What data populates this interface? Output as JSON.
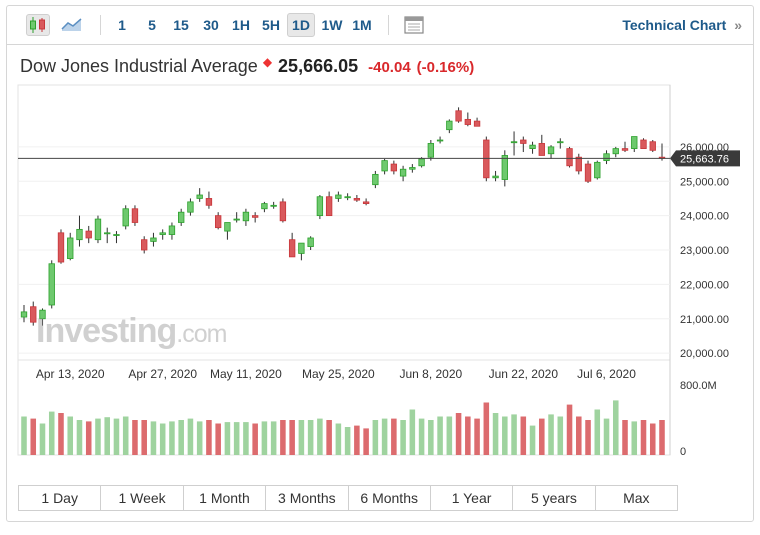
{
  "toolbar": {
    "chart_type_icons": [
      "candlestick-icon",
      "area-chart-icon"
    ],
    "intervals": [
      "1",
      "5",
      "15",
      "30",
      "1H",
      "5H",
      "1D",
      "1W",
      "1M"
    ],
    "active_interval": "1D",
    "calendar_icon": "calendar-icon",
    "technical_link": "Technical Chart",
    "technical_arrow": "»"
  },
  "header": {
    "name": "Dow Jones Industrial Average",
    "star": "◆",
    "price": "25,666.05",
    "change": "-40.04",
    "change_pct": "(-0.16%)"
  },
  "watermark": {
    "main": "Investing",
    "domain": ".com"
  },
  "ranges": [
    "1 Day",
    "1 Week",
    "1 Month",
    "3 Months",
    "6 Months",
    "1 Year",
    "5 years",
    "Max"
  ],
  "colors": {
    "up": "#2ca02c",
    "up_fill": "#6ec96e",
    "down": "#c8363a",
    "down_fill": "#d9595c",
    "vol_up": "#9fd39f",
    "vol_down": "#dc6b6e",
    "link": "#1e5a8a"
  },
  "chart_data": {
    "type": "candlestick",
    "x_tick_labels": [
      "Apr 13, 2020",
      "Apr 27, 2020",
      "May 11, 2020",
      "May 25, 2020",
      "Jun 8, 2020",
      "Jun 22, 2020",
      "Jul 6, 2020"
    ],
    "y_tick_labels": [
      "20,000.00",
      "21,000.00",
      "22,000.00",
      "23,000.00",
      "24,000.00",
      "25,000.00",
      "26,000.00"
    ],
    "ylim": [
      19800,
      27800
    ],
    "current_price_label": "25,663.76",
    "current_price": 25663.76,
    "volume_label_top": "800.0M",
    "volume_label_bottom": "0",
    "candles": [
      {
        "o": 21050,
        "h": 21400,
        "l": 20900,
        "c": 21200
      },
      {
        "o": 21350,
        "h": 21500,
        "l": 20800,
        "c": 20900
      },
      {
        "o": 21000,
        "h": 21300,
        "l": 20800,
        "c": 21250
      },
      {
        "o": 21400,
        "h": 22700,
        "l": 21300,
        "c": 22600
      },
      {
        "o": 23500,
        "h": 23600,
        "l": 22600,
        "c": 22650
      },
      {
        "o": 22750,
        "h": 23500,
        "l": 22700,
        "c": 23350
      },
      {
        "o": 23300,
        "h": 24000,
        "l": 23100,
        "c": 23600
      },
      {
        "o": 23550,
        "h": 23700,
        "l": 23200,
        "c": 23350
      },
      {
        "o": 23300,
        "h": 24000,
        "l": 23200,
        "c": 23900
      },
      {
        "o": 23500,
        "h": 23650,
        "l": 23200,
        "c": 23500
      },
      {
        "o": 23450,
        "h": 23550,
        "l": 23200,
        "c": 23450
      },
      {
        "o": 23700,
        "h": 24300,
        "l": 23600,
        "c": 24200
      },
      {
        "o": 24200,
        "h": 24300,
        "l": 23700,
        "c": 23800
      },
      {
        "o": 23300,
        "h": 23400,
        "l": 22900,
        "c": 23000
      },
      {
        "o": 23250,
        "h": 23500,
        "l": 23100,
        "c": 23350
      },
      {
        "o": 23450,
        "h": 23600,
        "l": 23300,
        "c": 23500
      },
      {
        "o": 23450,
        "h": 23800,
        "l": 23300,
        "c": 23700
      },
      {
        "o": 23800,
        "h": 24200,
        "l": 23700,
        "c": 24100
      },
      {
        "o": 24100,
        "h": 24500,
        "l": 24000,
        "c": 24400
      },
      {
        "o": 24500,
        "h": 24800,
        "l": 24400,
        "c": 24600
      },
      {
        "o": 24500,
        "h": 24700,
        "l": 24200,
        "c": 24300
      },
      {
        "o": 24000,
        "h": 24100,
        "l": 23600,
        "c": 23650
      },
      {
        "o": 23550,
        "h": 23800,
        "l": 23300,
        "c": 23800
      },
      {
        "o": 23900,
        "h": 24100,
        "l": 23800,
        "c": 23900
      },
      {
        "o": 23850,
        "h": 24200,
        "l": 23700,
        "c": 24100
      },
      {
        "o": 24000,
        "h": 24100,
        "l": 23800,
        "c": 23950
      },
      {
        "o": 24200,
        "h": 24400,
        "l": 24100,
        "c": 24350
      },
      {
        "o": 24300,
        "h": 24400,
        "l": 24200,
        "c": 24300
      },
      {
        "o": 24400,
        "h": 24500,
        "l": 23800,
        "c": 23850
      },
      {
        "o": 23300,
        "h": 23500,
        "l": 22800,
        "c": 22800
      },
      {
        "o": 22900,
        "h": 23200,
        "l": 22700,
        "c": 23200
      },
      {
        "o": 23100,
        "h": 23400,
        "l": 23000,
        "c": 23350
      },
      {
        "o": 24000,
        "h": 24600,
        "l": 23900,
        "c": 24550
      },
      {
        "o": 24550,
        "h": 24700,
        "l": 24000,
        "c": 24000
      },
      {
        "o": 24500,
        "h": 24700,
        "l": 24400,
        "c": 24600
      },
      {
        "o": 24550,
        "h": 24650,
        "l": 24450,
        "c": 24550
      },
      {
        "o": 24500,
        "h": 24600,
        "l": 24400,
        "c": 24450
      },
      {
        "o": 24400,
        "h": 24500,
        "l": 24300,
        "c": 24350
      },
      {
        "o": 24900,
        "h": 25300,
        "l": 24800,
        "c": 25200
      },
      {
        "o": 25300,
        "h": 25650,
        "l": 25200,
        "c": 25600
      },
      {
        "o": 25500,
        "h": 25600,
        "l": 25200,
        "c": 25300
      },
      {
        "o": 25150,
        "h": 25450,
        "l": 25000,
        "c": 25350
      },
      {
        "o": 25350,
        "h": 25500,
        "l": 25250,
        "c": 25400
      },
      {
        "o": 25450,
        "h": 25700,
        "l": 25400,
        "c": 25650
      },
      {
        "o": 25700,
        "h": 26200,
        "l": 25600,
        "c": 26100
      },
      {
        "o": 26200,
        "h": 26300,
        "l": 26100,
        "c": 26200
      },
      {
        "o": 26500,
        "h": 26800,
        "l": 26400,
        "c": 26750
      },
      {
        "o": 27050,
        "h": 27150,
        "l": 26700,
        "c": 26750
      },
      {
        "o": 26800,
        "h": 27000,
        "l": 26600,
        "c": 26650
      },
      {
        "o": 26750,
        "h": 26850,
        "l": 26600,
        "c": 26600
      },
      {
        "o": 26200,
        "h": 26300,
        "l": 25000,
        "c": 25100
      },
      {
        "o": 25100,
        "h": 25300,
        "l": 25000,
        "c": 25150
      },
      {
        "o": 25050,
        "h": 25900,
        "l": 24850,
        "c": 25750
      },
      {
        "o": 26150,
        "h": 26450,
        "l": 25750,
        "c": 26150
      },
      {
        "o": 26200,
        "h": 26300,
        "l": 25850,
        "c": 26100
      },
      {
        "o": 25950,
        "h": 26150,
        "l": 25800,
        "c": 26050
      },
      {
        "o": 26100,
        "h": 26350,
        "l": 25800,
        "c": 25750
      },
      {
        "o": 25800,
        "h": 26050,
        "l": 25650,
        "c": 26000
      },
      {
        "o": 26150,
        "h": 26250,
        "l": 25950,
        "c": 26150
      },
      {
        "o": 25950,
        "h": 26000,
        "l": 25400,
        "c": 25450
      },
      {
        "o": 25700,
        "h": 25800,
        "l": 25200,
        "c": 25300
      },
      {
        "o": 25500,
        "h": 25600,
        "l": 24950,
        "c": 25000
      },
      {
        "o": 25100,
        "h": 25600,
        "l": 25050,
        "c": 25550
      },
      {
        "o": 25600,
        "h": 25900,
        "l": 25500,
        "c": 25800
      },
      {
        "o": 25800,
        "h": 26000,
        "l": 25700,
        "c": 25950
      },
      {
        "o": 25950,
        "h": 26150,
        "l": 25850,
        "c": 25900
      },
      {
        "o": 25950,
        "h": 26250,
        "l": 25850,
        "c": 26300
      },
      {
        "o": 26200,
        "h": 26250,
        "l": 25950,
        "c": 25950
      },
      {
        "o": 26150,
        "h": 26200,
        "l": 25850,
        "c": 25900
      },
      {
        "o": 25700,
        "h": 26100,
        "l": 25600,
        "c": 25666
      }
    ],
    "volume": [
      0.55,
      0.52,
      0.45,
      0.62,
      0.6,
      0.55,
      0.5,
      0.48,
      0.52,
      0.54,
      0.52,
      0.55,
      0.5,
      0.5,
      0.48,
      0.45,
      0.48,
      0.5,
      0.52,
      0.48,
      0.5,
      0.45,
      0.47,
      0.47,
      0.47,
      0.45,
      0.48,
      0.48,
      0.5,
      0.5,
      0.5,
      0.5,
      0.52,
      0.5,
      0.45,
      0.4,
      0.42,
      0.38,
      0.5,
      0.52,
      0.52,
      0.5,
      0.65,
      0.52,
      0.5,
      0.55,
      0.55,
      0.6,
      0.55,
      0.52,
      0.75,
      0.6,
      0.55,
      0.58,
      0.55,
      0.42,
      0.52,
      0.58,
      0.55,
      0.72,
      0.55,
      0.5,
      0.65,
      0.52,
      0.78,
      0.5,
      0.48,
      0.5,
      0.45,
      0.5
    ]
  }
}
